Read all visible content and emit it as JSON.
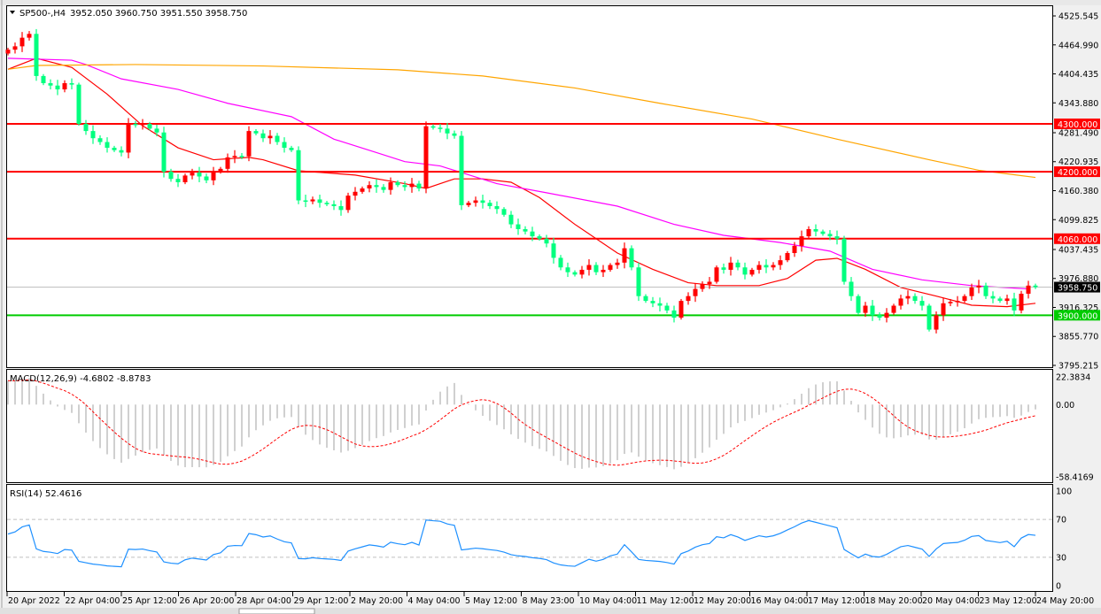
{
  "header": {
    "symbol": "SP500-,H4",
    "ohlc_text": "3952.050 3960.750 3951.550 3958.750"
  },
  "colors": {
    "up_candle": "#ff0000",
    "down_candle": "#00ff7f",
    "ma_fast": "#ff0000",
    "ma_mid": "#ff00ff",
    "ma_slow": "#ffa500",
    "resistance": "#ff0000",
    "support": "#00cc00",
    "macd_hist": "#c0c0c0",
    "macd_signal": "#ff0000",
    "rsi": "#1e90ff"
  },
  "chart_data": [
    {
      "type": "candlestick",
      "title": "SP500-,H4",
      "ylim": [
        3795.215,
        4525.545
      ],
      "y_ticks": [
        "4525.545",
        "4464.990",
        "4404.435",
        "4343.880",
        "4281.490",
        "4220.935",
        "4160.380",
        "4099.825",
        "4037.435",
        "3976.880",
        "3916.325",
        "3855.770",
        "3795.215"
      ],
      "x_ticks": [
        "20 Apr 2022",
        "22 Apr 04:00",
        "25 Apr 12:00",
        "26 Apr 20:00",
        "28 Apr 04:00",
        "29 Apr 12:00",
        "2 May 20:00",
        "4 May 04:00",
        "5 May 12:00",
        "8 May 23:00",
        "10 May 04:00",
        "11 May 12:00",
        "12 May 20:00",
        "16 May 04:00",
        "17 May 12:00",
        "18 May 20:00",
        "20 May 04:00",
        "23 May 12:00",
        "24 May 20:00"
      ],
      "close": [
        4455,
        4462,
        4480,
        4488,
        4400,
        4385,
        4380,
        4372,
        4385,
        4382,
        4300,
        4285,
        4270,
        4262,
        4250,
        4245,
        4240,
        4300,
        4298,
        4300,
        4290,
        4282,
        4200,
        4185,
        4178,
        4192,
        4198,
        4190,
        4182,
        4200,
        4206,
        4230,
        4233,
        4232,
        4285,
        4280,
        4270,
        4275,
        4262,
        4250,
        4245,
        4140,
        4138,
        4142,
        4135,
        4132,
        4128,
        4120,
        4150,
        4158,
        4165,
        4172,
        4168,
        4162,
        4178,
        4172,
        4168,
        4175,
        4165,
        4295,
        4292,
        4290,
        4280,
        4275,
        4130,
        4135,
        4140,
        4135,
        4128,
        4122,
        4110,
        4090,
        4080,
        4075,
        4065,
        4060,
        4050,
        4020,
        4000,
        3990,
        3985,
        3995,
        4005,
        3990,
        3995,
        4005,
        4010,
        4040,
        4000,
        3940,
        3930,
        3925,
        3920,
        3910,
        3895,
        3930,
        3940,
        3955,
        3965,
        3970,
        4000,
        3995,
        4010,
        4000,
        3985,
        3995,
        4005,
        4000,
        4005,
        4015,
        4030,
        4045,
        4065,
        4080,
        4075,
        4070,
        4065,
        4060,
        3970,
        3940,
        3905,
        3920,
        3900,
        3895,
        3905,
        3920,
        3935,
        3940,
        3930,
        3920,
        3870,
        3900,
        3925,
        3928,
        3930,
        3940,
        3958,
        3962,
        3940,
        3935,
        3930,
        3935,
        3910,
        3945,
        3962,
        3958.75
      ],
      "moving_averages": [
        {
          "points": [
            [
              0,
              4414
            ],
            [
              4,
              4437
            ],
            [
              9,
              4418
            ],
            [
              14,
              4362
            ],
            [
              19,
              4296
            ],
            [
              24,
              4250
            ],
            [
              29,
              4225
            ],
            [
              34,
              4230
            ],
            [
              36,
              4225
            ],
            [
              41,
              4202
            ],
            [
              49,
              4193
            ],
            [
              56,
              4175
            ],
            [
              59,
              4165
            ],
            [
              63,
              4185
            ],
            [
              67,
              4185
            ],
            [
              71,
              4178
            ],
            [
              75,
              4146
            ],
            [
              80,
              4090
            ],
            [
              86,
              4030
            ],
            [
              91,
              3996
            ],
            [
              96,
              3968
            ],
            [
              100,
              3962
            ],
            [
              106,
              3962
            ],
            [
              110,
              3977
            ],
            [
              114,
              4015
            ],
            [
              117,
              4019
            ],
            [
              121,
              3996
            ],
            [
              126,
              3958
            ],
            [
              131,
              3940
            ],
            [
              136,
              3921
            ],
            [
              141,
              3918
            ],
            [
              145,
              3925
            ]
          ]
        },
        {
          "points": [
            [
              0,
              4437
            ],
            [
              9,
              4433
            ],
            [
              11,
              4424
            ],
            [
              16,
              4394
            ],
            [
              24,
              4372
            ],
            [
              31,
              4343
            ],
            [
              40,
              4315
            ],
            [
              46,
              4268
            ],
            [
              52,
              4240
            ],
            [
              56,
              4221
            ],
            [
              61,
              4212
            ],
            [
              69,
              4175
            ],
            [
              76,
              4156
            ],
            [
              86,
              4128
            ],
            [
              94,
              4090
            ],
            [
              101,
              4067
            ],
            [
              109,
              4052
            ],
            [
              116,
              4034
            ],
            [
              122,
              3996
            ],
            [
              129,
              3974
            ],
            [
              136,
              3962
            ],
            [
              144,
              3955
            ]
          ]
        },
        {
          "points": [
            [
              0,
              4414
            ],
            [
              4,
              4422
            ],
            [
              18,
              4424
            ],
            [
              36,
              4421
            ],
            [
              55,
              4413
            ],
            [
              67,
              4400
            ],
            [
              80,
              4375
            ],
            [
              92,
              4343
            ],
            [
              105,
              4310
            ],
            [
              117,
              4268
            ],
            [
              130,
              4225
            ],
            [
              137,
              4203
            ],
            [
              145,
              4188
            ]
          ]
        }
      ],
      "horizontal_levels": [
        {
          "label": "4300.000",
          "value": 4300,
          "kind": "resistance"
        },
        {
          "label": "4200.000",
          "value": 4200,
          "kind": "resistance"
        },
        {
          "label": "4060.000",
          "value": 4060,
          "kind": "resistance"
        },
        {
          "label": "3900.000",
          "value": 3900,
          "kind": "support"
        }
      ],
      "current_price": {
        "label": "3958.750",
        "value": 3958.75
      }
    },
    {
      "type": "bar",
      "title": "MACD(12,26,9) -4.6802 -8.8783",
      "ylim": [
        -58.4169,
        22.3834
      ],
      "y_ticks": [
        "22.3834",
        "0.00",
        "-58.4169"
      ]
    },
    {
      "type": "line",
      "title": "RSI(14) 52.4616",
      "ylim": [
        0,
        100
      ],
      "y_ticks": [
        "100",
        "70",
        "30",
        "0"
      ],
      "levels": [
        70,
        30
      ]
    }
  ]
}
